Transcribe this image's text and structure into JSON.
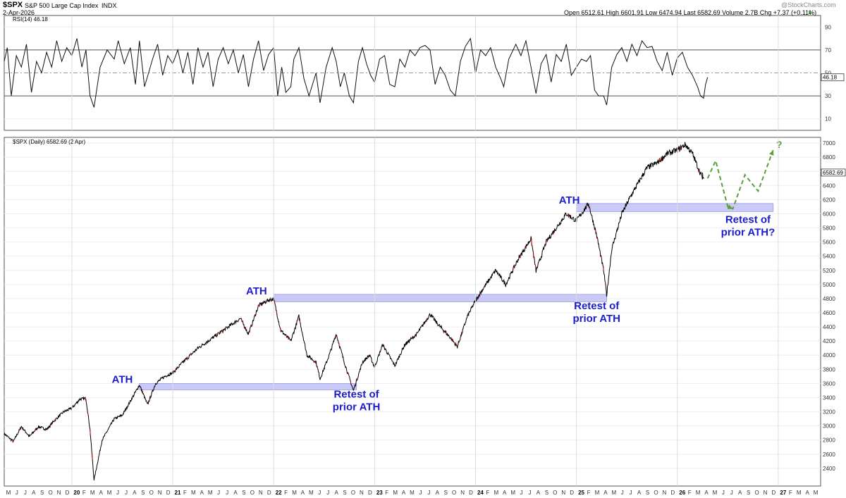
{
  "header": {
    "symbol": "$SPX",
    "name": "S&P 500 Large Cap Index",
    "exchange": "INDX",
    "date": "2-Apr-2026",
    "ohlc_label": "Open 6512.61  High 6601.91  Low 6474.94  Last 6582.69  Volume 2.7B  Chg +7.37 (+0.11%)",
    "chg_arrow": "▲",
    "watermark": "@StockCharts.com"
  },
  "rsi_panel": {
    "label": "RSI(14) 46.18",
    "last_value": "46.18",
    "ticks": [
      10,
      30,
      50,
      70,
      90
    ],
    "overbought": 70,
    "oversold": 30,
    "ylim": [
      0,
      100
    ]
  },
  "price_panel": {
    "label": "$SPX (Daily) 6582.69 (2 Apr)",
    "last_value": "6582.69"
  },
  "colors": {
    "zone_fill": "#b8b8f4",
    "zone_stroke": "#9a9ae8",
    "annotation": "#1c1ccc",
    "projection": "#5aa03c",
    "price_line": "#000000",
    "down_color": "#cc0000"
  },
  "chart_data": {
    "type": "line",
    "title": "$SPX S&P 500 Large Cap Index",
    "x_axis": {
      "start": 2019.33,
      "end": 2027.42,
      "month_letters": [
        "J",
        "F",
        "M",
        "A",
        "M",
        "J",
        "J",
        "A",
        "S",
        "O",
        "N",
        "D"
      ],
      "start_month_index": 4,
      "months": 97,
      "year_labels": [
        {
          "t": 2020,
          "label": "20"
        },
        {
          "t": 2021,
          "label": "21"
        },
        {
          "t": 2022,
          "label": "22"
        },
        {
          "t": 2023,
          "label": "23"
        },
        {
          "t": 2024,
          "label": "24"
        },
        {
          "t": 2025,
          "label": "25"
        },
        {
          "t": 2026,
          "label": "26"
        },
        {
          "t": 2027,
          "label": "27"
        }
      ]
    },
    "y_axis": {
      "ylim": [
        2150,
        7080
      ],
      "ticks": [
        2400,
        2600,
        2800,
        3000,
        3200,
        3400,
        3600,
        3800,
        4000,
        4200,
        4400,
        4600,
        4800,
        5000,
        5200,
        5400,
        5600,
        5800,
        6000,
        6200,
        6400,
        6600,
        6800,
        7000
      ],
      "grid": true
    },
    "series": [
      {
        "name": "$SPX Daily",
        "points": [
          [
            2019.33,
            2890
          ],
          [
            2019.42,
            2780
          ],
          [
            2019.5,
            2990
          ],
          [
            2019.58,
            2850
          ],
          [
            2019.67,
            2990
          ],
          [
            2019.75,
            2950
          ],
          [
            2019.83,
            3080
          ],
          [
            2019.92,
            3200
          ],
          [
            2020.0,
            3250
          ],
          [
            2020.08,
            3380
          ],
          [
            2020.14,
            3386
          ],
          [
            2020.18,
            2950
          ],
          [
            2020.22,
            2237
          ],
          [
            2020.3,
            2800
          ],
          [
            2020.42,
            3100
          ],
          [
            2020.5,
            3150
          ],
          [
            2020.6,
            3400
          ],
          [
            2020.67,
            3580
          ],
          [
            2020.75,
            3300
          ],
          [
            2020.83,
            3600
          ],
          [
            2020.92,
            3700
          ],
          [
            2021.0,
            3750
          ],
          [
            2021.1,
            3900
          ],
          [
            2021.25,
            4100
          ],
          [
            2021.4,
            4250
          ],
          [
            2021.55,
            4400
          ],
          [
            2021.67,
            4520
          ],
          [
            2021.75,
            4300
          ],
          [
            2021.85,
            4700
          ],
          [
            2021.95,
            4780
          ],
          [
            2022.0,
            4796
          ],
          [
            2022.07,
            4350
          ],
          [
            2022.17,
            4200
          ],
          [
            2022.25,
            4550
          ],
          [
            2022.33,
            4000
          ],
          [
            2022.42,
            3900
          ],
          [
            2022.46,
            3666
          ],
          [
            2022.55,
            4000
          ],
          [
            2022.62,
            4300
          ],
          [
            2022.7,
            3900
          ],
          [
            2022.79,
            3500
          ],
          [
            2022.88,
            3900
          ],
          [
            2022.95,
            4000
          ],
          [
            2023.0,
            3830
          ],
          [
            2023.08,
            4150
          ],
          [
            2023.2,
            3850
          ],
          [
            2023.3,
            4150
          ],
          [
            2023.42,
            4300
          ],
          [
            2023.55,
            4580
          ],
          [
            2023.62,
            4450
          ],
          [
            2023.75,
            4250
          ],
          [
            2023.82,
            4120
          ],
          [
            2023.92,
            4550
          ],
          [
            2024.0,
            4770
          ],
          [
            2024.08,
            4950
          ],
          [
            2024.2,
            5200
          ],
          [
            2024.3,
            5000
          ],
          [
            2024.42,
            5350
          ],
          [
            2024.55,
            5650
          ],
          [
            2024.6,
            5190
          ],
          [
            2024.7,
            5600
          ],
          [
            2024.8,
            5800
          ],
          [
            2024.9,
            6000
          ],
          [
            2025.0,
            5900
          ],
          [
            2025.12,
            6144
          ],
          [
            2025.2,
            5700
          ],
          [
            2025.27,
            5200
          ],
          [
            2025.3,
            4850
          ],
          [
            2025.35,
            5500
          ],
          [
            2025.45,
            6000
          ],
          [
            2025.55,
            6280
          ],
          [
            2025.7,
            6650
          ],
          [
            2025.8,
            6720
          ],
          [
            2025.9,
            6850
          ],
          [
            2026.0,
            6900
          ],
          [
            2026.08,
            6978
          ],
          [
            2026.15,
            6850
          ],
          [
            2026.22,
            6600
          ],
          [
            2026.26,
            6470
          ],
          [
            2026.25,
            6582.69
          ]
        ]
      },
      {
        "name": "Projection",
        "points": [
          [
            2026.3,
            6500
          ],
          [
            2026.38,
            6750
          ],
          [
            2026.5,
            6100
          ],
          [
            2026.55,
            6070
          ],
          [
            2026.67,
            6550
          ],
          [
            2026.8,
            6320
          ],
          [
            2026.95,
            6900
          ]
        ]
      }
    ],
    "rsi_series": {
      "name": "RSI(14)",
      "points": [
        [
          2019.33,
          60
        ],
        [
          2019.36,
          72
        ],
        [
          2019.4,
          30
        ],
        [
          2019.45,
          65
        ],
        [
          2019.5,
          55
        ],
        [
          2019.55,
          75
        ],
        [
          2019.6,
          33
        ],
        [
          2019.65,
          60
        ],
        [
          2019.7,
          50
        ],
        [
          2019.75,
          68
        ],
        [
          2019.8,
          55
        ],
        [
          2019.85,
          78
        ],
        [
          2019.9,
          60
        ],
        [
          2019.95,
          72
        ],
        [
          2020.0,
          65
        ],
        [
          2020.05,
          80
        ],
        [
          2020.1,
          55
        ],
        [
          2020.14,
          70
        ],
        [
          2020.18,
          30
        ],
        [
          2020.22,
          20
        ],
        [
          2020.28,
          55
        ],
        [
          2020.35,
          70
        ],
        [
          2020.42,
          62
        ],
        [
          2020.46,
          78
        ],
        [
          2020.52,
          58
        ],
        [
          2020.58,
          72
        ],
        [
          2020.63,
          40
        ],
        [
          2020.67,
          78
        ],
        [
          2020.72,
          38
        ],
        [
          2020.8,
          62
        ],
        [
          2020.85,
          75
        ],
        [
          2020.9,
          48
        ],
        [
          2020.95,
          65
        ],
        [
          2021.0,
          58
        ],
        [
          2021.05,
          70
        ],
        [
          2021.1,
          50
        ],
        [
          2021.15,
          68
        ],
        [
          2021.2,
          40
        ],
        [
          2021.25,
          72
        ],
        [
          2021.3,
          55
        ],
        [
          2021.35,
          68
        ],
        [
          2021.4,
          38
        ],
        [
          2021.45,
          62
        ],
        [
          2021.5,
          72
        ],
        [
          2021.55,
          58
        ],
        [
          2021.6,
          70
        ],
        [
          2021.65,
          50
        ],
        [
          2021.7,
          66
        ],
        [
          2021.75,
          38
        ],
        [
          2021.8,
          62
        ],
        [
          2021.85,
          78
        ],
        [
          2021.9,
          52
        ],
        [
          2021.95,
          66
        ],
        [
          2022.0,
          72
        ],
        [
          2022.04,
          30
        ],
        [
          2022.08,
          55
        ],
        [
          2022.12,
          33
        ],
        [
          2022.17,
          38
        ],
        [
          2022.2,
          62
        ],
        [
          2022.25,
          72
        ],
        [
          2022.3,
          45
        ],
        [
          2022.35,
          30
        ],
        [
          2022.42,
          50
        ],
        [
          2022.46,
          24
        ],
        [
          2022.52,
          55
        ],
        [
          2022.58,
          72
        ],
        [
          2022.62,
          60
        ],
        [
          2022.66,
          38
        ],
        [
          2022.7,
          50
        ],
        [
          2022.75,
          30
        ],
        [
          2022.79,
          24
        ],
        [
          2022.84,
          60
        ],
        [
          2022.88,
          72
        ],
        [
          2022.92,
          58
        ],
        [
          2022.96,
          48
        ],
        [
          2023.0,
          42
        ],
        [
          2023.05,
          62
        ],
        [
          2023.1,
          65
        ],
        [
          2023.15,
          40
        ],
        [
          2023.2,
          38
        ],
        [
          2023.25,
          62
        ],
        [
          2023.3,
          55
        ],
        [
          2023.35,
          70
        ],
        [
          2023.4,
          65
        ],
        [
          2023.45,
          72
        ],
        [
          2023.5,
          74
        ],
        [
          2023.55,
          70
        ],
        [
          2023.6,
          40
        ],
        [
          2023.65,
          55
        ],
        [
          2023.7,
          48
        ],
        [
          2023.75,
          35
        ],
        [
          2023.8,
          30
        ],
        [
          2023.85,
          60
        ],
        [
          2023.9,
          73
        ],
        [
          2023.95,
          80
        ],
        [
          2024.0,
          50
        ],
        [
          2024.05,
          70
        ],
        [
          2024.1,
          65
        ],
        [
          2024.15,
          72
        ],
        [
          2024.2,
          55
        ],
        [
          2024.25,
          45
        ],
        [
          2024.28,
          38
        ],
        [
          2024.33,
          62
        ],
        [
          2024.4,
          75
        ],
        [
          2024.45,
          65
        ],
        [
          2024.5,
          78
        ],
        [
          2024.55,
          55
        ],
        [
          2024.6,
          32
        ],
        [
          2024.65,
          58
        ],
        [
          2024.7,
          66
        ],
        [
          2024.75,
          42
        ],
        [
          2024.8,
          66
        ],
        [
          2024.85,
          60
        ],
        [
          2024.9,
          75
        ],
        [
          2024.95,
          48
        ],
        [
          2025.0,
          55
        ],
        [
          2025.05,
          62
        ],
        [
          2025.1,
          60
        ],
        [
          2025.14,
          65
        ],
        [
          2025.18,
          35
        ],
        [
          2025.22,
          30
        ],
        [
          2025.27,
          30
        ],
        [
          2025.3,
          22
        ],
        [
          2025.35,
          55
        ],
        [
          2025.4,
          66
        ],
        [
          2025.45,
          72
        ],
        [
          2025.5,
          60
        ],
        [
          2025.55,
          75
        ],
        [
          2025.6,
          65
        ],
        [
          2025.65,
          78
        ],
        [
          2025.7,
          72
        ],
        [
          2025.75,
          73
        ],
        [
          2025.8,
          60
        ],
        [
          2025.85,
          52
        ],
        [
          2025.9,
          68
        ],
        [
          2025.95,
          48
        ],
        [
          2026.0,
          63
        ],
        [
          2026.05,
          68
        ],
        [
          2026.1,
          55
        ],
        [
          2026.15,
          48
        ],
        [
          2026.2,
          38
        ],
        [
          2026.23,
          30
        ],
        [
          2026.26,
          28
        ],
        [
          2026.28,
          40
        ],
        [
          2026.3,
          46.18
        ]
      ]
    },
    "zones": [
      {
        "t0": 2020.67,
        "t1": 2022.82,
        "y0": 3510,
        "y1": 3600
      },
      {
        "t0": 2022.0,
        "t1": 2025.3,
        "y0": 4755,
        "y1": 4860
      },
      {
        "t0": 2025.0,
        "t1": 2026.95,
        "y0": 6030,
        "y1": 6145
      }
    ],
    "annotations": [
      {
        "text": [
          "ATH"
        ],
        "t": 2020.5,
        "v": 3610
      },
      {
        "text": [
          "ATH"
        ],
        "t": 2021.83,
        "v": 4860
      },
      {
        "text": [
          "ATH"
        ],
        "t": 2024.93,
        "v": 6145
      },
      {
        "text": [
          "Retest of",
          "prior ATH"
        ],
        "t": 2022.82,
        "v": 3400
      },
      {
        "text": [
          "Retest of",
          "prior ATH"
        ],
        "t": 2025.2,
        "v": 4650
      },
      {
        "text": [
          "Retest of",
          "prior ATH?"
        ],
        "t": 2026.7,
        "v": 5870
      }
    ],
    "question_mark": {
      "text": "?",
      "t": 2026.98,
      "v": 6930
    }
  }
}
